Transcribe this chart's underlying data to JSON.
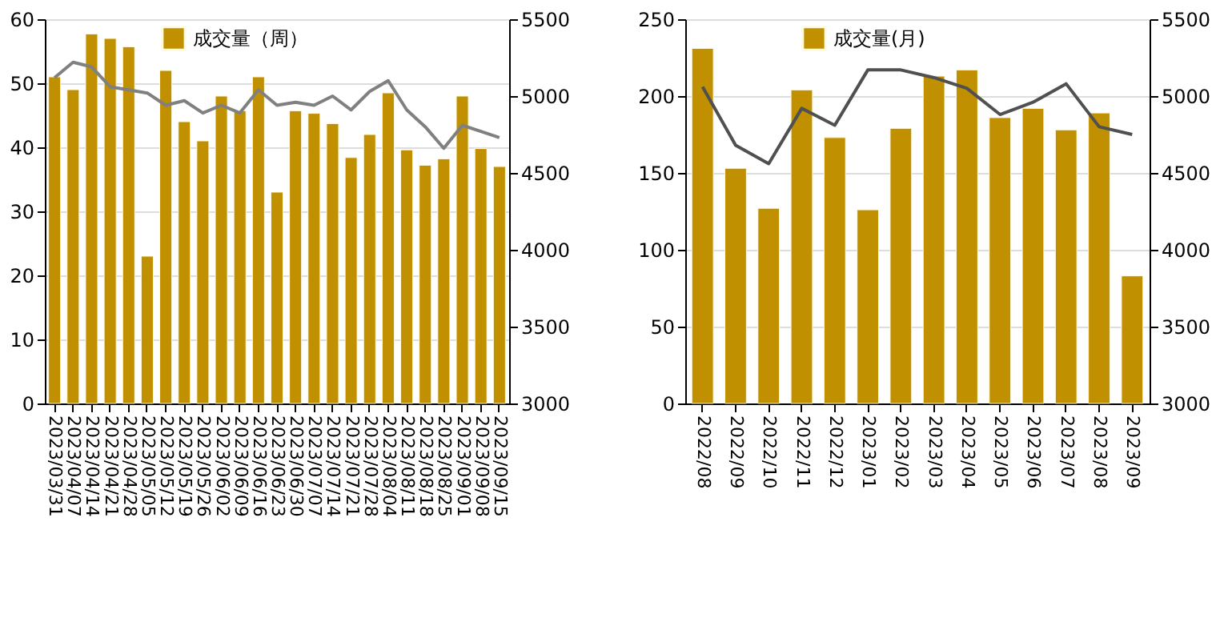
{
  "chart_data": [
    {
      "type": "bar",
      "categories": [
        "2023/03/31",
        "2023/04/07",
        "2023/04/14",
        "2023/04/21",
        "2023/04/28",
        "2023/05/05",
        "2023/05/12",
        "2023/05/19",
        "2023/05/26",
        "2023/06/02",
        "2023/06/09",
        "2023/06/16",
        "2023/06/23",
        "2023/06/30",
        "2023/07/07",
        "2023/07/14",
        "2023/07/21",
        "2023/07/28",
        "2023/08/04",
        "2023/08/11",
        "2023/08/18",
        "2023/08/25",
        "2023/09/01",
        "2023/09/08",
        "2023/09/15"
      ],
      "series": [
        {
          "name": "成交量（周）",
          "color": "#c09000",
          "values": [
            51,
            49,
            57.7,
            57,
            55.7,
            23,
            52,
            44,
            41,
            48,
            45.7,
            51,
            33,
            45.7,
            45.3,
            43.7,
            38.4,
            42,
            48.5,
            39.6,
            37.2,
            38.2,
            48,
            39.8,
            37
          ]
        },
        {
          "type": "line",
          "axis": "y2",
          "color": "#808080",
          "values": [
            5120,
            5220,
            5190,
            5060,
            5040,
            5020,
            4940,
            4970,
            4890,
            4940,
            4890,
            5040,
            4940,
            4960,
            4940,
            5000,
            4910,
            5030,
            5100,
            4910,
            4800,
            4660,
            4810,
            4770,
            4730
          ]
        }
      ],
      "ylim": [
        0,
        60
      ],
      "yticks": [
        0,
        10,
        20,
        30,
        40,
        50,
        60
      ],
      "y2lim": [
        3000,
        5500
      ],
      "y2ticks": [
        3000,
        3500,
        4000,
        4500,
        5000,
        5500
      ],
      "grid": "y",
      "legend": "top"
    },
    {
      "type": "bar",
      "categories": [
        "2022/08",
        "2022/09",
        "2022/10",
        "2022/11",
        "2022/12",
        "2023/01",
        "2023/02",
        "2023/03",
        "2023/04",
        "2023/05",
        "2023/06",
        "2023/07",
        "2023/08",
        "2023/09"
      ],
      "series": [
        {
          "name": "成交量(月)",
          "color": "#c09000",
          "values": [
            231,
            153,
            127,
            204,
            173,
            126,
            179,
            213,
            217,
            186,
            192,
            178,
            189,
            83
          ]
        },
        {
          "type": "line",
          "axis": "y2",
          "color": "#505050",
          "values": [
            5060,
            4680,
            4560,
            4920,
            4810,
            5170,
            5170,
            5120,
            5050,
            4880,
            4960,
            5080,
            4800,
            4750
          ]
        }
      ],
      "ylim": [
        0,
        250
      ],
      "yticks": [
        0,
        50,
        100,
        150,
        200,
        250
      ],
      "y2lim": [
        3000,
        5500
      ],
      "y2ticks": [
        3000,
        3500,
        4000,
        4500,
        5000,
        5500
      ],
      "grid": "y",
      "legend": "top"
    }
  ]
}
